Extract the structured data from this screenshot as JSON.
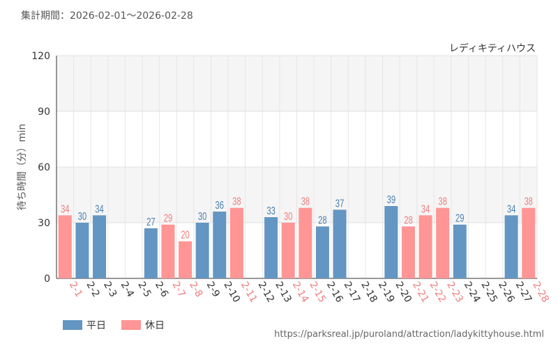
{
  "period_label": "集計期間：2026-02-01～2026-02-28",
  "source_url": "https://parksreal.jp/puroland/attraction/ladykittyhouse.html",
  "colors": {
    "weekday": "#6396c2",
    "holiday": "#ff9595",
    "weekday_text": "#4a7fae",
    "holiday_text": "#f07c7c"
  },
  "chart_data": {
    "type": "bar",
    "title": "レディキティハウス",
    "xlabel": "",
    "ylabel": "待ち時間（分）min",
    "ylim": [
      0,
      120
    ],
    "yticks": [
      0,
      30,
      60,
      90,
      120
    ],
    "categories": [
      "2-1",
      "2-2",
      "2-3",
      "2-4",
      "2-5",
      "2-6",
      "2-7",
      "2-8",
      "2-9",
      "2-10",
      "2-11",
      "2-12",
      "2-13",
      "2-14",
      "2-15",
      "2-16",
      "2-17",
      "2-18",
      "2-19",
      "2-20",
      "2-21",
      "2-22",
      "2-23",
      "2-24",
      "2-25",
      "2-26",
      "2-27",
      "2-28"
    ],
    "values": [
      34,
      30,
      34,
      null,
      null,
      27,
      29,
      20,
      30,
      36,
      38,
      null,
      33,
      30,
      38,
      28,
      37,
      null,
      null,
      39,
      28,
      34,
      38,
      29,
      null,
      null,
      34,
      38
    ],
    "day_type": [
      "holiday",
      "weekday",
      "weekday",
      "weekday",
      "weekday",
      "weekday",
      "holiday",
      "holiday",
      "weekday",
      "weekday",
      "holiday",
      "weekday",
      "weekday",
      "holiday",
      "holiday",
      "weekday",
      "weekday",
      "weekday",
      "weekday",
      "weekday",
      "holiday",
      "holiday",
      "holiday",
      "weekday",
      "weekday",
      "weekday",
      "weekday",
      "holiday"
    ],
    "legend": [
      {
        "key": "weekday",
        "label": "平日"
      },
      {
        "key": "holiday",
        "label": "休日"
      }
    ]
  }
}
